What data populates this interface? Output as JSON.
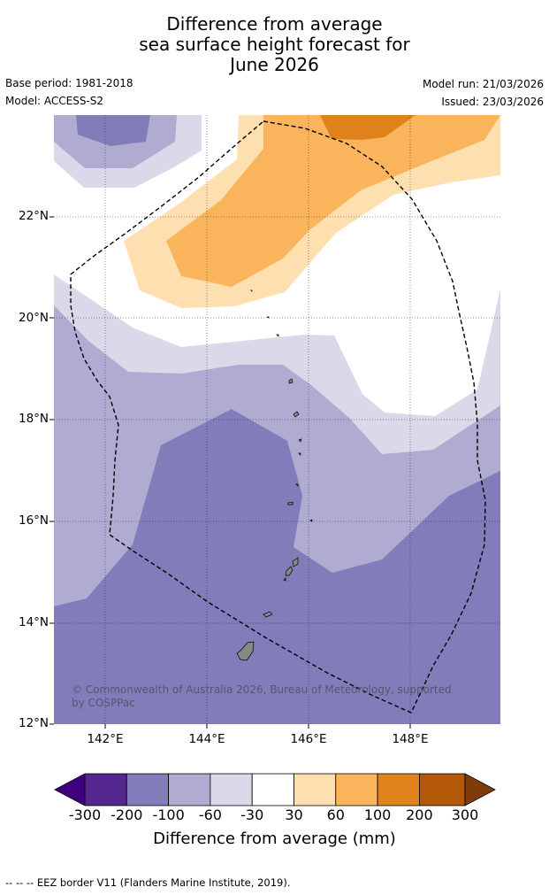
{
  "title": {
    "line1": "Difference from average",
    "line2": "sea surface height forecast for",
    "line3": "June 2026"
  },
  "meta": {
    "base_period": "Base period: 1981-2018",
    "model": "Model: ACCESS-S2",
    "model_run": "Model run: 21/03/2026",
    "issued": "Issued: 23/03/2026"
  },
  "map": {
    "lat_labels": [
      "22°N",
      "20°N",
      "18°N",
      "16°N",
      "14°N",
      "12°N"
    ],
    "lon_labels": [
      "142°E",
      "144°E",
      "146°E",
      "148°E"
    ],
    "copyright": "© Commonwealth of Australia 2026, Bureau of Meteorology, supported by COSPPac"
  },
  "colorbar": {
    "ticks": [
      "-300",
      "-200",
      "-100",
      "-60",
      "-30",
      "30",
      "60",
      "100",
      "200",
      "300"
    ],
    "colors": [
      "#3f007d",
      "#54278f",
      "#807dba",
      "#b0abd1",
      "#d9d9e9",
      "#ffffff",
      "#fedfb0",
      "#fab45c",
      "#e0821b",
      "#b35806",
      "#7f3b08"
    ],
    "label": "Difference from average (mm)"
  },
  "footnote": "--  --  -- EEZ border V11 (Flanders Marine Institute, 2019)."
}
